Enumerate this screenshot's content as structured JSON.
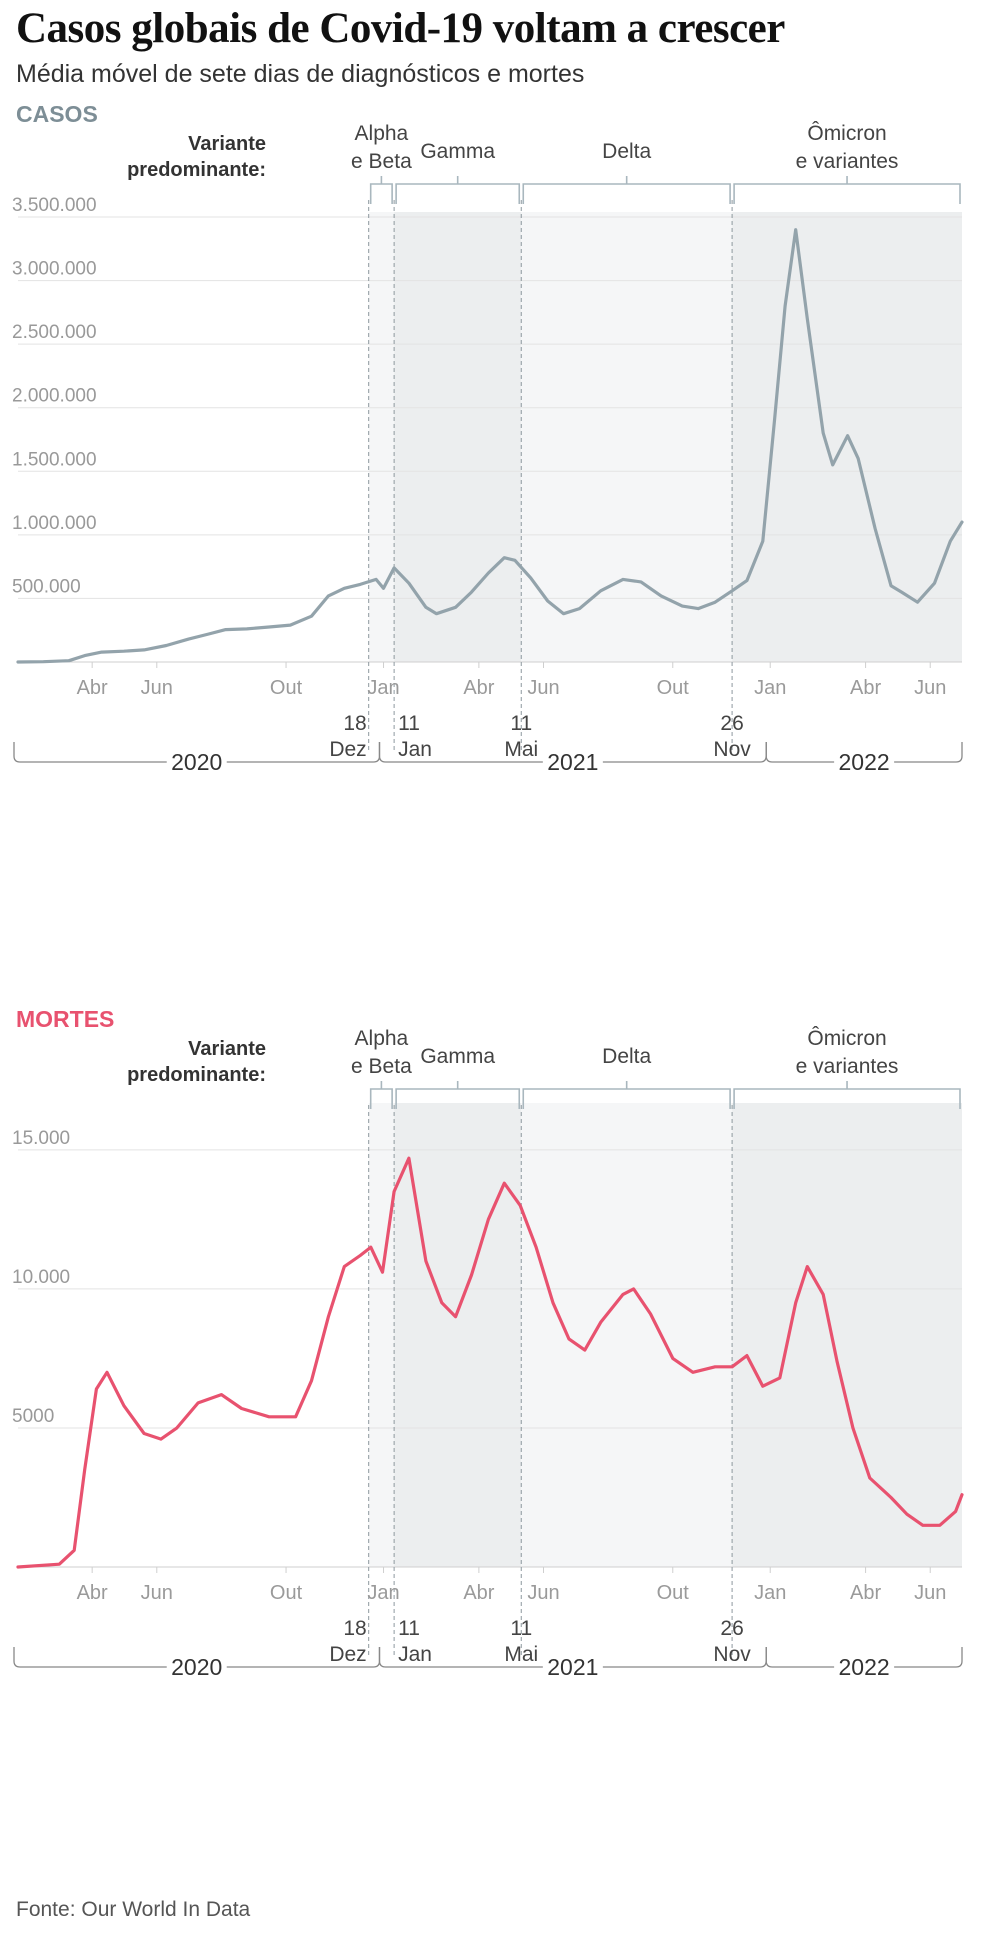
{
  "headline": "Casos globais de Covid-19 voltam a crescer",
  "subtitle": "Média móvel de sete dias de diagnósticos e mortes",
  "source": "Fonte: Our World In Data",
  "colors": {
    "casos": "#93a3ab",
    "mortes": "#e8526f",
    "casos_title": "#7d8e96",
    "mortes_title": "#e8526f",
    "shade_light": "#f5f6f7",
    "shade_dark": "#eceeef",
    "bracket": "#a9b7be",
    "grid": "#e3e3e3",
    "tick": "#9a9a9a"
  },
  "variant_header": {
    "line1": "Variante",
    "line2": "predominante:"
  },
  "variants": [
    {
      "lines": [
        "Alpha",
        "e Beta"
      ]
    },
    {
      "lines": [
        "Gamma"
      ]
    },
    {
      "lines": [
        "Delta"
      ]
    },
    {
      "lines": [
        "Ômicron",
        "e variantes"
      ]
    }
  ],
  "month_labels": [
    "Abr",
    "Jun",
    "Out",
    "Jan",
    "Abr",
    "Jun",
    "Out",
    "Jan",
    "Abr",
    "Jun"
  ],
  "event_labels": [
    {
      "line1": "18",
      "line2": "Dez"
    },
    {
      "line1": "11",
      "line2": "Jan"
    },
    {
      "line1": "11",
      "line2": "Mai"
    },
    {
      "line1": "26",
      "line2": "Nov"
    }
  ],
  "years": [
    "2020",
    "2021",
    "2022"
  ],
  "chart_data": [
    {
      "type": "line",
      "title": "CASOS",
      "x_unit": "date",
      "xlim": [
        "2020-01-22",
        "2022-07-01"
      ],
      "ylim": [
        0,
        3500000
      ],
      "y_ticks": [
        {
          "value": 500000,
          "label": "500.000"
        },
        {
          "value": 1000000,
          "label": "1.000.000"
        },
        {
          "value": 1500000,
          "label": "1.500.000"
        },
        {
          "value": 2000000,
          "label": "2.000.000"
        },
        {
          "value": 2500000,
          "label": "2.500.000"
        },
        {
          "value": 3000000,
          "label": "3.000.000"
        },
        {
          "value": 3500000,
          "label": "3.500.000"
        }
      ],
      "grid": true,
      "series": [
        {
          "color": "#93a3ab",
          "points": [
            [
              "2020-01-22",
              0
            ],
            [
              "2020-02-15",
              2000
            ],
            [
              "2020-03-10",
              10000
            ],
            [
              "2020-03-25",
              50000
            ],
            [
              "2020-04-10",
              78000
            ],
            [
              "2020-05-01",
              85000
            ],
            [
              "2020-05-20",
              95000
            ],
            [
              "2020-06-10",
              130000
            ],
            [
              "2020-07-01",
              180000
            ],
            [
              "2020-07-20",
              220000
            ],
            [
              "2020-08-05",
              255000
            ],
            [
              "2020-08-25",
              260000
            ],
            [
              "2020-09-15",
              275000
            ],
            [
              "2020-10-05",
              290000
            ],
            [
              "2020-10-25",
              360000
            ],
            [
              "2020-11-10",
              520000
            ],
            [
              "2020-11-25",
              580000
            ],
            [
              "2020-12-10",
              610000
            ],
            [
              "2020-12-25",
              650000
            ],
            [
              "2021-01-01",
              580000
            ],
            [
              "2021-01-11",
              740000
            ],
            [
              "2021-01-25",
              620000
            ],
            [
              "2021-02-10",
              430000
            ],
            [
              "2021-02-20",
              380000
            ],
            [
              "2021-03-10",
              430000
            ],
            [
              "2021-03-25",
              550000
            ],
            [
              "2021-04-10",
              700000
            ],
            [
              "2021-04-25",
              820000
            ],
            [
              "2021-05-05",
              800000
            ],
            [
              "2021-05-20",
              660000
            ],
            [
              "2021-06-05",
              480000
            ],
            [
              "2021-06-20",
              380000
            ],
            [
              "2021-07-05",
              420000
            ],
            [
              "2021-07-25",
              560000
            ],
            [
              "2021-08-15",
              650000
            ],
            [
              "2021-09-01",
              630000
            ],
            [
              "2021-09-20",
              520000
            ],
            [
              "2021-10-10",
              440000
            ],
            [
              "2021-10-25",
              420000
            ],
            [
              "2021-11-10",
              470000
            ],
            [
              "2021-11-26",
              560000
            ],
            [
              "2021-12-10",
              640000
            ],
            [
              "2021-12-25",
              950000
            ],
            [
              "2022-01-05",
              1900000
            ],
            [
              "2022-01-15",
              2800000
            ],
            [
              "2022-01-25",
              3400000
            ],
            [
              "2022-02-05",
              2700000
            ],
            [
              "2022-02-20",
              1800000
            ],
            [
              "2022-03-01",
              1550000
            ],
            [
              "2022-03-15",
              1780000
            ],
            [
              "2022-03-25",
              1600000
            ],
            [
              "2022-04-10",
              1050000
            ],
            [
              "2022-04-25",
              600000
            ],
            [
              "2022-05-05",
              550000
            ],
            [
              "2022-05-20",
              470000
            ],
            [
              "2022-06-05",
              620000
            ],
            [
              "2022-06-20",
              950000
            ],
            [
              "2022-07-01",
              1100000
            ]
          ]
        }
      ]
    },
    {
      "type": "line",
      "title": "MORTES",
      "x_unit": "date",
      "xlim": [
        "2020-01-22",
        "2022-07-01"
      ],
      "ylim": [
        0,
        16000
      ],
      "y_ticks": [
        {
          "value": 5000,
          "label": "5000"
        },
        {
          "value": 10000,
          "label": "10.000"
        },
        {
          "value": 15000,
          "label": "15.000"
        }
      ],
      "grid": true,
      "series": [
        {
          "color": "#e8526f",
          "points": [
            [
              "2020-01-22",
              0
            ],
            [
              "2020-03-01",
              100
            ],
            [
              "2020-03-15",
              600
            ],
            [
              "2020-03-25",
              3500
            ],
            [
              "2020-04-05",
              6400
            ],
            [
              "2020-04-15",
              7000
            ],
            [
              "2020-05-01",
              5800
            ],
            [
              "2020-05-20",
              4800
            ],
            [
              "2020-06-05",
              4600
            ],
            [
              "2020-06-20",
              5000
            ],
            [
              "2020-07-10",
              5900
            ],
            [
              "2020-08-01",
              6200
            ],
            [
              "2020-08-20",
              5700
            ],
            [
              "2020-09-15",
              5400
            ],
            [
              "2020-10-10",
              5400
            ],
            [
              "2020-10-25",
              6700
            ],
            [
              "2020-11-10",
              9000
            ],
            [
              "2020-11-25",
              10800
            ],
            [
              "2020-12-10",
              11200
            ],
            [
              "2020-12-20",
              11500
            ],
            [
              "2020-12-31",
              10600
            ],
            [
              "2021-01-11",
              13500
            ],
            [
              "2021-01-25",
              14700
            ],
            [
              "2021-02-10",
              11000
            ],
            [
              "2021-02-25",
              9500
            ],
            [
              "2021-03-10",
              9000
            ],
            [
              "2021-03-25",
              10500
            ],
            [
              "2021-04-10",
              12500
            ],
            [
              "2021-04-25",
              13800
            ],
            [
              "2021-05-10",
              13000
            ],
            [
              "2021-05-25",
              11500
            ],
            [
              "2021-06-10",
              9500
            ],
            [
              "2021-06-25",
              8200
            ],
            [
              "2021-07-10",
              7800
            ],
            [
              "2021-07-25",
              8800
            ],
            [
              "2021-08-15",
              9800
            ],
            [
              "2021-08-25",
              10000
            ],
            [
              "2021-09-10",
              9100
            ],
            [
              "2021-10-01",
              7500
            ],
            [
              "2021-10-20",
              7000
            ],
            [
              "2021-11-10",
              7200
            ],
            [
              "2021-11-26",
              7200
            ],
            [
              "2021-12-10",
              7600
            ],
            [
              "2021-12-25",
              6500
            ],
            [
              "2022-01-10",
              6800
            ],
            [
              "2022-01-25",
              9500
            ],
            [
              "2022-02-05",
              10800
            ],
            [
              "2022-02-20",
              9800
            ],
            [
              "2022-03-05",
              7400
            ],
            [
              "2022-03-20",
              5000
            ],
            [
              "2022-04-05",
              3200
            ],
            [
              "2022-04-25",
              2500
            ],
            [
              "2022-05-10",
              1900
            ],
            [
              "2022-05-25",
              1500
            ],
            [
              "2022-06-10",
              1500
            ],
            [
              "2022-06-25",
              2000
            ],
            [
              "2022-07-01",
              2600
            ]
          ]
        }
      ]
    }
  ]
}
